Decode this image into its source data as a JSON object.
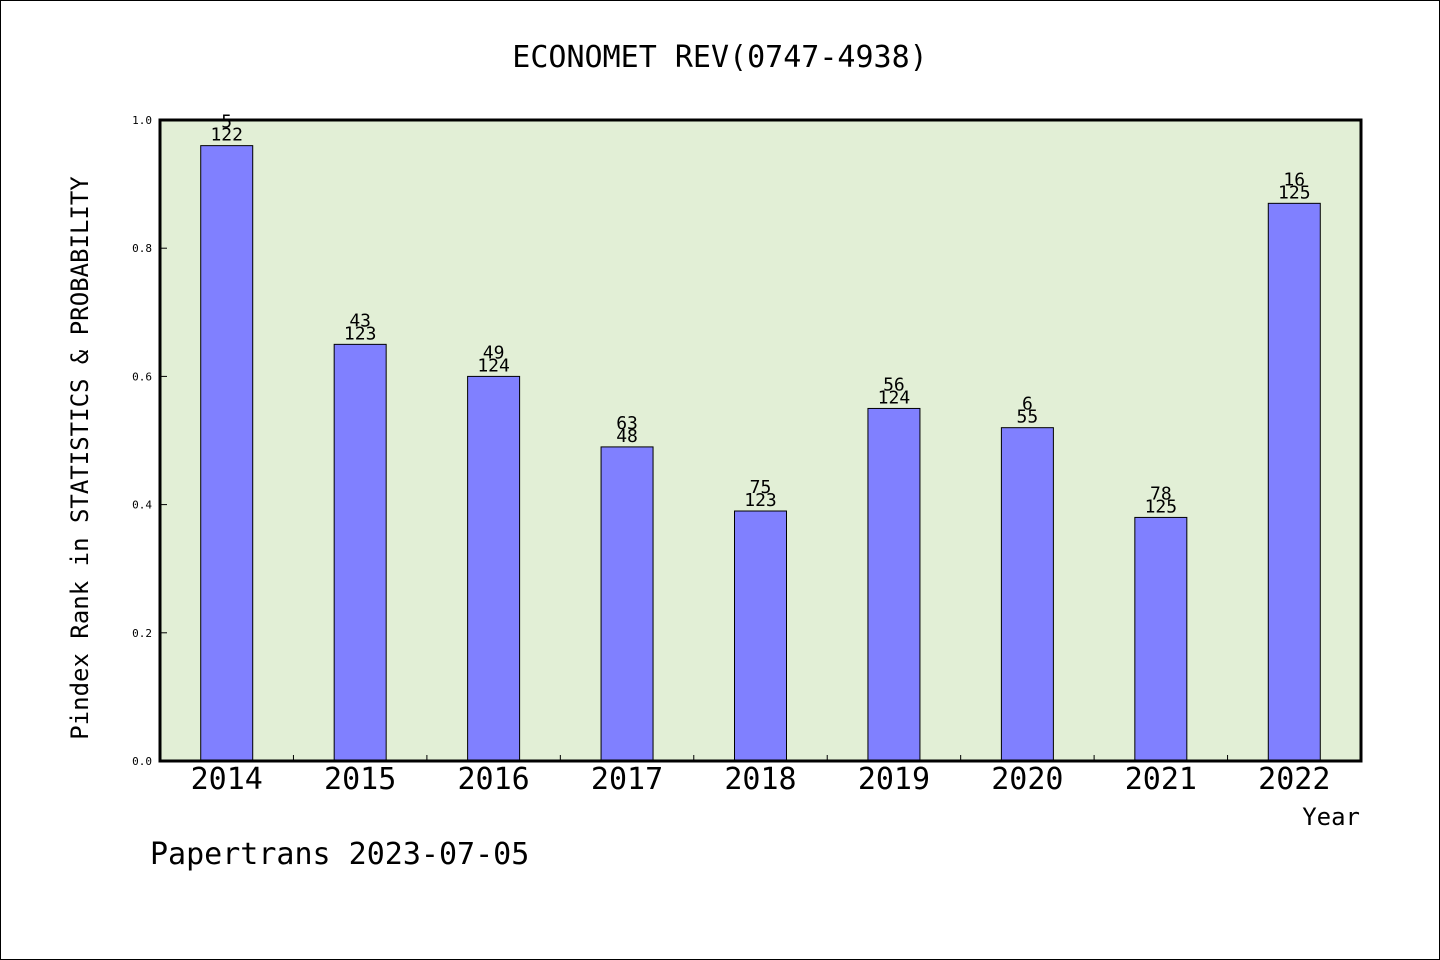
{
  "chart_data": {
    "type": "bar",
    "title": "ECONOMET REV(0747-4938)",
    "ylabel": "Pindex Rank in STATISTICS & PROBABILITY",
    "xlabel": "Year",
    "ylim": [
      0,
      1.0
    ],
    "yticks": [
      "0.0",
      "0.2",
      "0.4",
      "0.6",
      "0.8",
      "1.0"
    ],
    "categories": [
      "2014",
      "2015",
      "2016",
      "2017",
      "2018",
      "2019",
      "2020",
      "2021",
      "2022"
    ],
    "values": [
      0.96,
      0.65,
      0.6,
      0.49,
      0.39,
      0.55,
      0.52,
      0.38,
      0.87
    ],
    "rank_labels": [
      "5",
      "43",
      "49",
      "63",
      "75",
      "56",
      "6",
      "78",
      "16"
    ],
    "total_labels": [
      "122",
      "123",
      "124",
      "48",
      "123",
      "124",
      "55",
      "125",
      "125"
    ],
    "grid": false,
    "plot_background": "#e2efd6",
    "bar_color": "#8080ff"
  },
  "footer": "Papertrans 2023-07-05"
}
